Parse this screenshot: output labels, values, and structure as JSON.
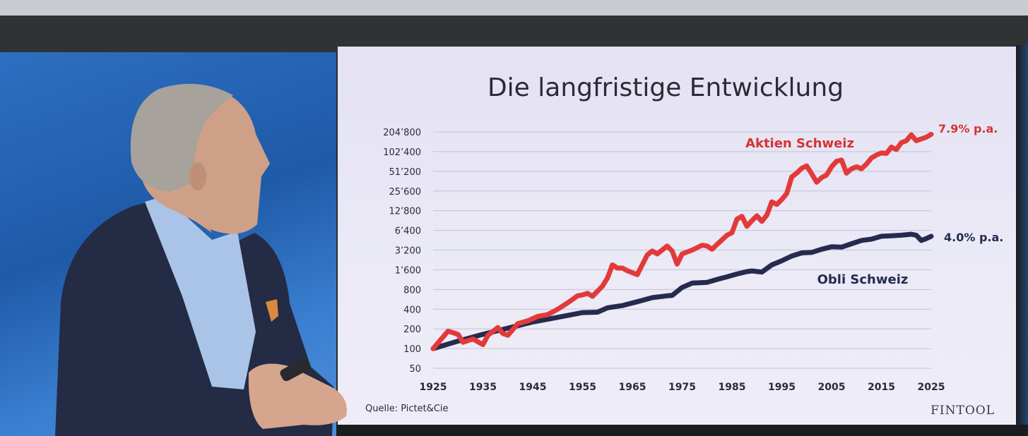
{
  "chart_data": {
    "type": "line",
    "title": "Die langfristige Entwicklung",
    "y_scale": "log2",
    "ylim": [
      50,
      204800
    ],
    "xlim": [
      1925,
      2025
    ],
    "y_ticks": [
      {
        "value": 50,
        "label": "50"
      },
      {
        "value": 100,
        "label": "100"
      },
      {
        "value": 200,
        "label": "200"
      },
      {
        "value": 400,
        "label": "400"
      },
      {
        "value": 800,
        "label": "800"
      },
      {
        "value": 1600,
        "label": "1’600"
      },
      {
        "value": 3200,
        "label": "3’200"
      },
      {
        "value": 6400,
        "label": "6’400"
      },
      {
        "value": 12800,
        "label": "12’800"
      },
      {
        "value": 25600,
        "label": "25’600"
      },
      {
        "value": 51200,
        "label": "51’200"
      },
      {
        "value": 102400,
        "label": "102’400"
      },
      {
        "value": 204800,
        "label": "204’800"
      }
    ],
    "x_ticks": [
      {
        "value": 1925,
        "label": "1925"
      },
      {
        "value": 1935,
        "label": "1935"
      },
      {
        "value": 1945,
        "label": "1945"
      },
      {
        "value": 1955,
        "label": "1955"
      },
      {
        "value": 1965,
        "label": "1965"
      },
      {
        "value": 1975,
        "label": "1975"
      },
      {
        "value": 1985,
        "label": "1985"
      },
      {
        "value": 1995,
        "label": "1995"
      },
      {
        "value": 2005,
        "label": "2005"
      },
      {
        "value": 2015,
        "label": "2015"
      },
      {
        "value": 2025,
        "label": "2025"
      }
    ],
    "grid": true,
    "series": [
      {
        "name": "Aktien Schweiz",
        "color": "#e23a3a",
        "end_label": "7.9% p.a.",
        "points": [
          [
            1925,
            100
          ],
          [
            1928,
            185
          ],
          [
            1930,
            165
          ],
          [
            1931,
            125
          ],
          [
            1933,
            140
          ],
          [
            1935,
            115
          ],
          [
            1936,
            160
          ],
          [
            1938,
            210
          ],
          [
            1939,
            170
          ],
          [
            1940,
            160
          ],
          [
            1942,
            240
          ],
          [
            1944,
            265
          ],
          [
            1946,
            310
          ],
          [
            1948,
            330
          ],
          [
            1950,
            400
          ],
          [
            1952,
            500
          ],
          [
            1954,
            640
          ],
          [
            1955,
            660
          ],
          [
            1956,
            700
          ],
          [
            1957,
            630
          ],
          [
            1959,
            900
          ],
          [
            1960,
            1200
          ],
          [
            1961,
            1900
          ],
          [
            1962,
            1700
          ],
          [
            1963,
            1700
          ],
          [
            1964,
            1550
          ],
          [
            1966,
            1350
          ],
          [
            1968,
            2700
          ],
          [
            1969,
            3100
          ],
          [
            1970,
            2800
          ],
          [
            1972,
            3700
          ],
          [
            1973,
            3100
          ],
          [
            1974,
            1950
          ],
          [
            1975,
            2800
          ],
          [
            1977,
            3200
          ],
          [
            1979,
            3800
          ],
          [
            1980,
            3700
          ],
          [
            1981,
            3300
          ],
          [
            1982,
            3900
          ],
          [
            1984,
            5400
          ],
          [
            1985,
            5900
          ],
          [
            1986,
            9500
          ],
          [
            1987,
            10500
          ],
          [
            1988,
            7400
          ],
          [
            1989,
            9000
          ],
          [
            1990,
            10700
          ],
          [
            1991,
            8800
          ],
          [
            1992,
            11000
          ],
          [
            1993,
            17500
          ],
          [
            1994,
            16000
          ],
          [
            1995,
            19000
          ],
          [
            1996,
            23500
          ],
          [
            1997,
            42000
          ],
          [
            1998,
            48000
          ],
          [
            1999,
            57000
          ],
          [
            2000,
            62000
          ],
          [
            2001,
            47000
          ],
          [
            2002,
            35000
          ],
          [
            2003,
            41000
          ],
          [
            2004,
            45000
          ],
          [
            2005,
            60000
          ],
          [
            2006,
            73000
          ],
          [
            2007,
            76000
          ],
          [
            2008,
            48000
          ],
          [
            2009,
            56000
          ],
          [
            2010,
            60000
          ],
          [
            2011,
            56000
          ],
          [
            2012,
            66000
          ],
          [
            2013,
            82000
          ],
          [
            2014,
            91000
          ],
          [
            2015,
            98000
          ],
          [
            2016,
            96000
          ],
          [
            2017,
            120000
          ],
          [
            2018,
            110000
          ],
          [
            2019,
            140000
          ],
          [
            2020,
            150000
          ],
          [
            2021,
            185000
          ],
          [
            2022,
            150000
          ],
          [
            2023,
            160000
          ],
          [
            2024,
            170000
          ],
          [
            2025,
            188000
          ]
        ]
      },
      {
        "name": "Obli Schweiz",
        "color": "#262a4e",
        "end_label": "4.0% p.a.",
        "points": [
          [
            1925,
            100
          ],
          [
            1930,
            130
          ],
          [
            1935,
            165
          ],
          [
            1940,
            205
          ],
          [
            1945,
            255
          ],
          [
            1950,
            300
          ],
          [
            1955,
            355
          ],
          [
            1958,
            360
          ],
          [
            1960,
            420
          ],
          [
            1963,
            455
          ],
          [
            1966,
            520
          ],
          [
            1969,
            600
          ],
          [
            1972,
            640
          ],
          [
            1973,
            650
          ],
          [
            1975,
            860
          ],
          [
            1977,
            1000
          ],
          [
            1980,
            1030
          ],
          [
            1982,
            1140
          ],
          [
            1984,
            1250
          ],
          [
            1986,
            1380
          ],
          [
            1988,
            1500
          ],
          [
            1989,
            1540
          ],
          [
            1991,
            1480
          ],
          [
            1993,
            1900
          ],
          [
            1995,
            2200
          ],
          [
            1997,
            2600
          ],
          [
            1999,
            2900
          ],
          [
            2001,
            2950
          ],
          [
            2003,
            3300
          ],
          [
            2005,
            3600
          ],
          [
            2007,
            3550
          ],
          [
            2009,
            4000
          ],
          [
            2011,
            4500
          ],
          [
            2013,
            4700
          ],
          [
            2015,
            5200
          ],
          [
            2017,
            5300
          ],
          [
            2019,
            5400
          ],
          [
            2021,
            5600
          ],
          [
            2022,
            5400
          ],
          [
            2023,
            4500
          ],
          [
            2024,
            4800
          ],
          [
            2025,
            5200
          ]
        ]
      }
    ]
  },
  "slide": {
    "source": "Quelle: Pictet&Cie",
    "logo": "FINTOOL"
  }
}
